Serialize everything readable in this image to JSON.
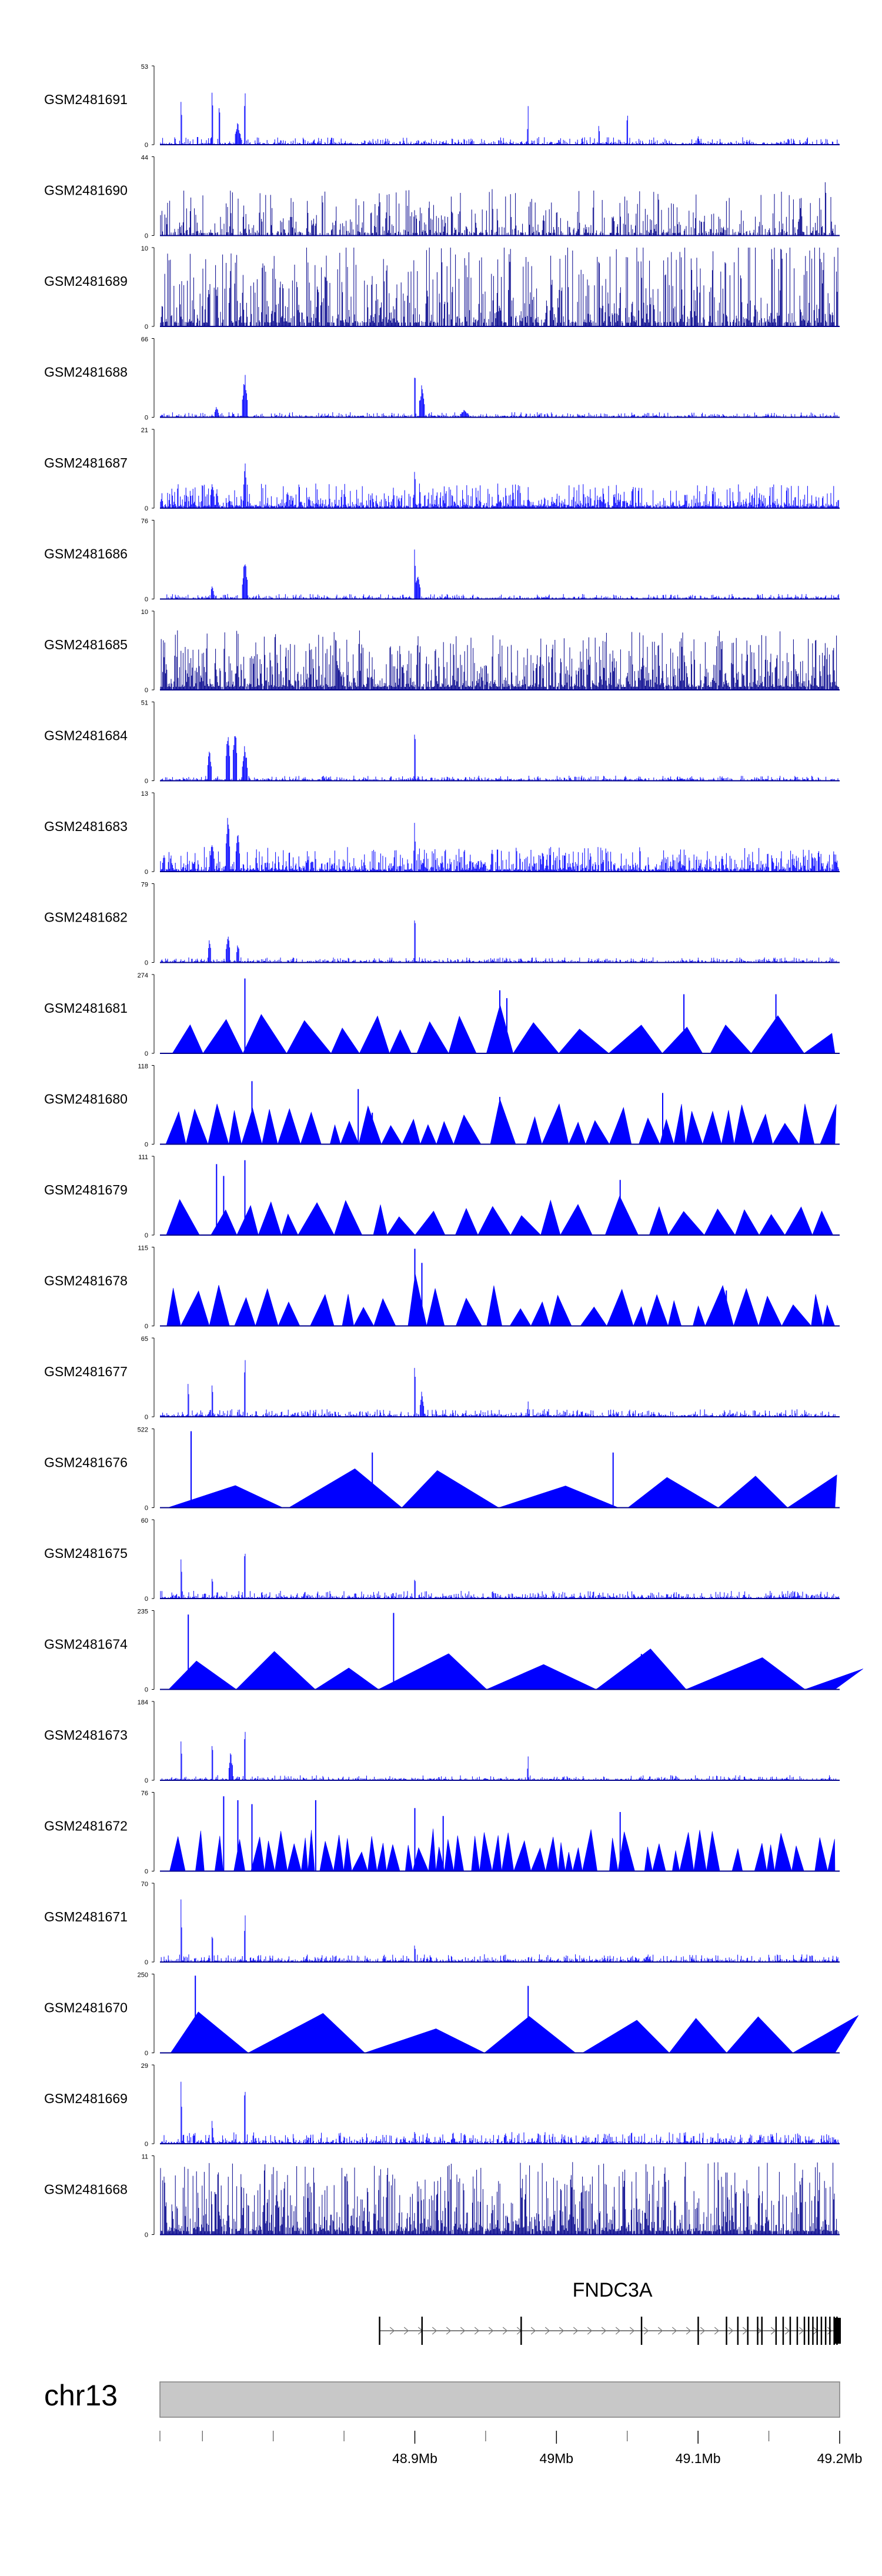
{
  "chart_data": {
    "type": "area",
    "title": "",
    "chromosome": "chr13",
    "xlim": [
      48.72,
      49.2
    ],
    "x_unit": "Mb",
    "xticks": [
      {
        "value": 48.9,
        "label": "48.9Mb"
      },
      {
        "value": 49.0,
        "label": "49Mb"
      },
      {
        "value": 49.1,
        "label": "49.1Mb"
      },
      {
        "value": 49.2,
        "label": "49.2Mb"
      }
    ],
    "minor_ticks": [
      48.72,
      48.75,
      48.8,
      48.85,
      48.95,
      49.05,
      49.15
    ],
    "tracks": [
      {
        "name": "GSM2481691",
        "ymax": 53,
        "ymin": 0,
        "style": "dense",
        "density": 0.55,
        "noise": 0.05,
        "peaks": [
          {
            "x": 48.735,
            "h": 0.85,
            "w": 0.0005
          },
          {
            "x": 48.757,
            "h": 0.95,
            "w": 0.0005
          },
          {
            "x": 48.762,
            "h": 0.75,
            "w": 0.0005
          },
          {
            "x": 48.78,
            "h": 0.9,
            "w": 0.0006
          },
          {
            "x": 48.775,
            "h": 0.3,
            "w": 0.002
          },
          {
            "x": 48.98,
            "h": 0.5,
            "w": 0.0005
          },
          {
            "x": 49.03,
            "h": 0.35,
            "w": 0.0005
          },
          {
            "x": 49.05,
            "h": 0.55,
            "w": 0.0005
          },
          {
            "x": 49.1,
            "h": 0.15,
            "w": 0.0008
          }
        ]
      },
      {
        "name": "GSM2481690",
        "ymax": 44,
        "ymin": 0,
        "style": "sparse",
        "density": 0.55,
        "noise": 0.35,
        "peaks": [
          {
            "x": 48.835,
            "h": 0.5,
            "w": 0.0004
          },
          {
            "x": 49.19,
            "h": 0.97,
            "w": 0.0005
          },
          {
            "x": 49.172,
            "h": 0.75,
            "w": 0.0005
          },
          {
            "x": 48.88,
            "h": 0.45,
            "w": 0.0004
          }
        ]
      },
      {
        "name": "GSM2481689",
        "ymax": 10,
        "ymin": 0,
        "style": "sparse",
        "density": 0.75,
        "noise": 0.65,
        "peaks": []
      },
      {
        "name": "GSM2481688",
        "ymax": 66,
        "ymin": 0,
        "style": "dense",
        "density": 0.5,
        "noise": 0.03,
        "peaks": [
          {
            "x": 48.78,
            "h": 0.6,
            "w": 0.0018
          },
          {
            "x": 48.9,
            "h": 0.97,
            "w": 0.0004
          },
          {
            "x": 48.905,
            "h": 0.45,
            "w": 0.002
          },
          {
            "x": 48.76,
            "h": 0.15,
            "w": 0.0015
          },
          {
            "x": 48.935,
            "h": 0.1,
            "w": 0.003
          }
        ]
      },
      {
        "name": "GSM2481687",
        "ymax": 21,
        "ymin": 0,
        "style": "dense",
        "density": 0.85,
        "noise": 0.18,
        "peaks": [
          {
            "x": 48.78,
            "h": 0.65,
            "w": 0.0012
          },
          {
            "x": 48.9,
            "h": 0.85,
            "w": 0.0004
          },
          {
            "x": 48.757,
            "h": 0.4,
            "w": 0.0015
          }
        ]
      },
      {
        "name": "GSM2481686",
        "ymax": 76,
        "ymin": 0,
        "style": "dense",
        "density": 0.5,
        "noise": 0.03,
        "peaks": [
          {
            "x": 48.78,
            "h": 0.58,
            "w": 0.0018
          },
          {
            "x": 48.9,
            "h": 0.97,
            "w": 0.0004
          },
          {
            "x": 48.902,
            "h": 0.35,
            "w": 0.002
          },
          {
            "x": 48.757,
            "h": 0.2,
            "w": 0.0012
          }
        ]
      },
      {
        "name": "GSM2481685",
        "ymax": 10,
        "ymin": 0,
        "style": "dense",
        "density": 0.95,
        "noise": 0.45,
        "peaks": []
      },
      {
        "name": "GSM2481684",
        "ymax": 51,
        "ymin": 0,
        "style": "dense",
        "density": 0.5,
        "noise": 0.03,
        "peaks": [
          {
            "x": 48.755,
            "h": 0.45,
            "w": 0.0015
          },
          {
            "x": 48.768,
            "h": 0.7,
            "w": 0.0015
          },
          {
            "x": 48.773,
            "h": 0.8,
            "w": 0.0015
          },
          {
            "x": 48.78,
            "h": 0.5,
            "w": 0.0018
          },
          {
            "x": 48.9,
            "h": 0.97,
            "w": 0.0006
          }
        ]
      },
      {
        "name": "GSM2481683",
        "ymax": 13,
        "ymin": 0,
        "style": "dense",
        "density": 0.85,
        "noise": 0.18,
        "peaks": [
          {
            "x": 48.757,
            "h": 0.45,
            "w": 0.0015
          },
          {
            "x": 48.768,
            "h": 0.8,
            "w": 0.0015
          },
          {
            "x": 48.775,
            "h": 0.6,
            "w": 0.0015
          },
          {
            "x": 48.9,
            "h": 0.9,
            "w": 0.0004
          }
        ]
      },
      {
        "name": "GSM2481682",
        "ymax": 79,
        "ymin": 0,
        "style": "dense",
        "density": 0.5,
        "noise": 0.03,
        "peaks": [
          {
            "x": 48.755,
            "h": 0.35,
            "w": 0.0012
          },
          {
            "x": 48.768,
            "h": 0.4,
            "w": 0.0015
          },
          {
            "x": 48.775,
            "h": 0.28,
            "w": 0.0012
          },
          {
            "x": 48.9,
            "h": 0.97,
            "w": 0.0004
          }
        ]
      },
      {
        "name": "GSM2481681",
        "ymax": 274,
        "ymin": 0,
        "style": "triangles",
        "density": 0.3,
        "noise": 0.2,
        "peaks": [
          {
            "x": 48.78,
            "h": 0.95,
            "w": 0.0005
          },
          {
            "x": 48.96,
            "h": 0.8,
            "w": 0.0005
          },
          {
            "x": 48.965,
            "h": 0.7,
            "w": 0.0005
          },
          {
            "x": 49.09,
            "h": 0.75,
            "w": 0.0005
          },
          {
            "x": 49.155,
            "h": 0.75,
            "w": 0.0005
          }
        ]
      },
      {
        "name": "GSM2481680",
        "ymax": 118,
        "ymin": 0,
        "style": "triangles",
        "density": 0.6,
        "noise": 0.25,
        "peaks": [
          {
            "x": 48.785,
            "h": 0.8,
            "w": 0.0005
          },
          {
            "x": 48.86,
            "h": 0.7,
            "w": 0.0004
          },
          {
            "x": 48.87,
            "h": 0.4,
            "w": 0.0004
          },
          {
            "x": 48.96,
            "h": 0.6,
            "w": 0.0004
          },
          {
            "x": 49.075,
            "h": 0.65,
            "w": 0.0004
          }
        ]
      },
      {
        "name": "GSM2481679",
        "ymax": 111,
        "ymin": 0,
        "style": "triangles",
        "density": 0.45,
        "noise": 0.25,
        "peaks": [
          {
            "x": 48.76,
            "h": 0.9,
            "w": 0.0005
          },
          {
            "x": 48.765,
            "h": 0.75,
            "w": 0.0005
          },
          {
            "x": 48.78,
            "h": 0.95,
            "w": 0.0005
          },
          {
            "x": 49.045,
            "h": 0.7,
            "w": 0.0005
          }
        ]
      },
      {
        "name": "GSM2481678",
        "ymax": 115,
        "ymin": 0,
        "style": "triangles",
        "density": 0.55,
        "noise": 0.2,
        "peaks": [
          {
            "x": 48.9,
            "h": 0.98,
            "w": 0.0005
          },
          {
            "x": 48.905,
            "h": 0.8,
            "w": 0.0005
          },
          {
            "x": 49.12,
            "h": 0.45,
            "w": 0.0005
          }
        ]
      },
      {
        "name": "GSM2481677",
        "ymax": 65,
        "ymin": 0,
        "style": "dense",
        "density": 0.6,
        "noise": 0.05,
        "peaks": [
          {
            "x": 48.74,
            "h": 0.55,
            "w": 0.0005
          },
          {
            "x": 48.757,
            "h": 0.6,
            "w": 0.0005
          },
          {
            "x": 48.78,
            "h": 0.97,
            "w": 0.0005
          },
          {
            "x": 48.9,
            "h": 0.9,
            "w": 0.0005
          },
          {
            "x": 48.905,
            "h": 0.35,
            "w": 0.0015
          },
          {
            "x": 48.98,
            "h": 0.25,
            "w": 0.0005
          }
        ]
      },
      {
        "name": "GSM2481676",
        "ymax": 522,
        "ymin": 0,
        "style": "triangles",
        "density": 0.12,
        "noise": 0.3,
        "peaks": [
          {
            "x": 48.742,
            "h": 0.97,
            "w": 0.003
          },
          {
            "x": 48.87,
            "h": 0.7,
            "w": 0.008
          },
          {
            "x": 49.04,
            "h": 0.7,
            "w": 0.012
          }
        ]
      },
      {
        "name": "GSM2481675",
        "ymax": 60,
        "ymin": 0,
        "style": "dense",
        "density": 0.6,
        "noise": 0.05,
        "peaks": [
          {
            "x": 48.735,
            "h": 0.7,
            "w": 0.0005
          },
          {
            "x": 48.757,
            "h": 0.4,
            "w": 0.0005
          },
          {
            "x": 48.78,
            "h": 0.97,
            "w": 0.0005
          },
          {
            "x": 48.9,
            "h": 0.35,
            "w": 0.0005
          }
        ]
      },
      {
        "name": "GSM2481674",
        "ymax": 235,
        "ymin": 0,
        "style": "triangles",
        "density": 0.13,
        "noise": 0.3,
        "peaks": [
          {
            "x": 48.74,
            "h": 0.95,
            "w": 0.003
          },
          {
            "x": 48.885,
            "h": 0.97,
            "w": 0.012
          },
          {
            "x": 49.06,
            "h": 0.45,
            "w": 0.005
          }
        ]
      },
      {
        "name": "GSM2481673",
        "ymax": 184,
        "ymin": 0,
        "style": "dense",
        "density": 0.45,
        "noise": 0.03,
        "peaks": [
          {
            "x": 48.735,
            "h": 0.65,
            "w": 0.0005
          },
          {
            "x": 48.757,
            "h": 0.7,
            "w": 0.0005
          },
          {
            "x": 48.78,
            "h": 0.97,
            "w": 0.0005
          },
          {
            "x": 48.77,
            "h": 0.4,
            "w": 0.0015
          },
          {
            "x": 48.98,
            "h": 0.4,
            "w": 0.0005
          }
        ]
      },
      {
        "name": "GSM2481672",
        "ymax": 76,
        "ymin": 0,
        "style": "triangles",
        "density": 0.95,
        "noise": 0.3,
        "peaks": [
          {
            "x": 48.765,
            "h": 0.95,
            "w": 0.0005
          },
          {
            "x": 48.775,
            "h": 0.9,
            "w": 0.0005
          },
          {
            "x": 48.785,
            "h": 0.85,
            "w": 0.0005
          },
          {
            "x": 48.83,
            "h": 0.9,
            "w": 0.0005
          },
          {
            "x": 48.9,
            "h": 0.8,
            "w": 0.0005
          },
          {
            "x": 48.92,
            "h": 0.7,
            "w": 0.0005
          },
          {
            "x": 49.045,
            "h": 0.75,
            "w": 0.0005
          }
        ]
      },
      {
        "name": "GSM2481671",
        "ymax": 70,
        "ymin": 0,
        "style": "dense",
        "density": 0.6,
        "noise": 0.05,
        "peaks": [
          {
            "x": 48.735,
            "h": 0.95,
            "w": 0.0005
          },
          {
            "x": 48.757,
            "h": 0.55,
            "w": 0.0005
          },
          {
            "x": 48.78,
            "h": 0.8,
            "w": 0.0005
          },
          {
            "x": 48.9,
            "h": 0.3,
            "w": 0.0005
          }
        ]
      },
      {
        "name": "GSM2481670",
        "ymax": 250,
        "ymin": 0,
        "style": "triangles",
        "density": 0.14,
        "noise": 0.3,
        "peaks": [
          {
            "x": 48.745,
            "h": 0.98,
            "w": 0.0015
          },
          {
            "x": 48.98,
            "h": 0.85,
            "w": 0.0005
          }
        ]
      },
      {
        "name": "GSM2481669",
        "ymax": 29,
        "ymin": 0,
        "style": "dense",
        "density": 0.7,
        "noise": 0.08,
        "peaks": [
          {
            "x": 48.735,
            "h": 0.95,
            "w": 0.0005
          },
          {
            "x": 48.757,
            "h": 0.4,
            "w": 0.0005
          },
          {
            "x": 48.78,
            "h": 0.97,
            "w": 0.0005
          },
          {
            "x": 48.9,
            "h": 0.2,
            "w": 0.0005
          }
        ]
      },
      {
        "name": "GSM2481668",
        "ymax": 11,
        "ymin": 0,
        "style": "sparse",
        "density": 0.9,
        "noise": 0.55,
        "peaks": []
      }
    ],
    "gene": {
      "name": "FNDC3A",
      "start": 48.875,
      "end": 49.2,
      "strand": "+",
      "exons": [
        48.875,
        48.905,
        48.975,
        49.06,
        49.1,
        49.12,
        49.128,
        49.135,
        49.142,
        49.145,
        49.155,
        49.16,
        49.165,
        49.17,
        49.175,
        49.178,
        49.181,
        49.184,
        49.187,
        49.19,
        49.193,
        49.196,
        49.198
      ],
      "cds_block": [
        49.197,
        49.2
      ]
    },
    "colors": {
      "signal": "#0000ff",
      "signal_dark": "#00008b",
      "baseline": "#00008b",
      "ideogram": "#c8c8c8",
      "ideogram_border": "#808080"
    }
  }
}
